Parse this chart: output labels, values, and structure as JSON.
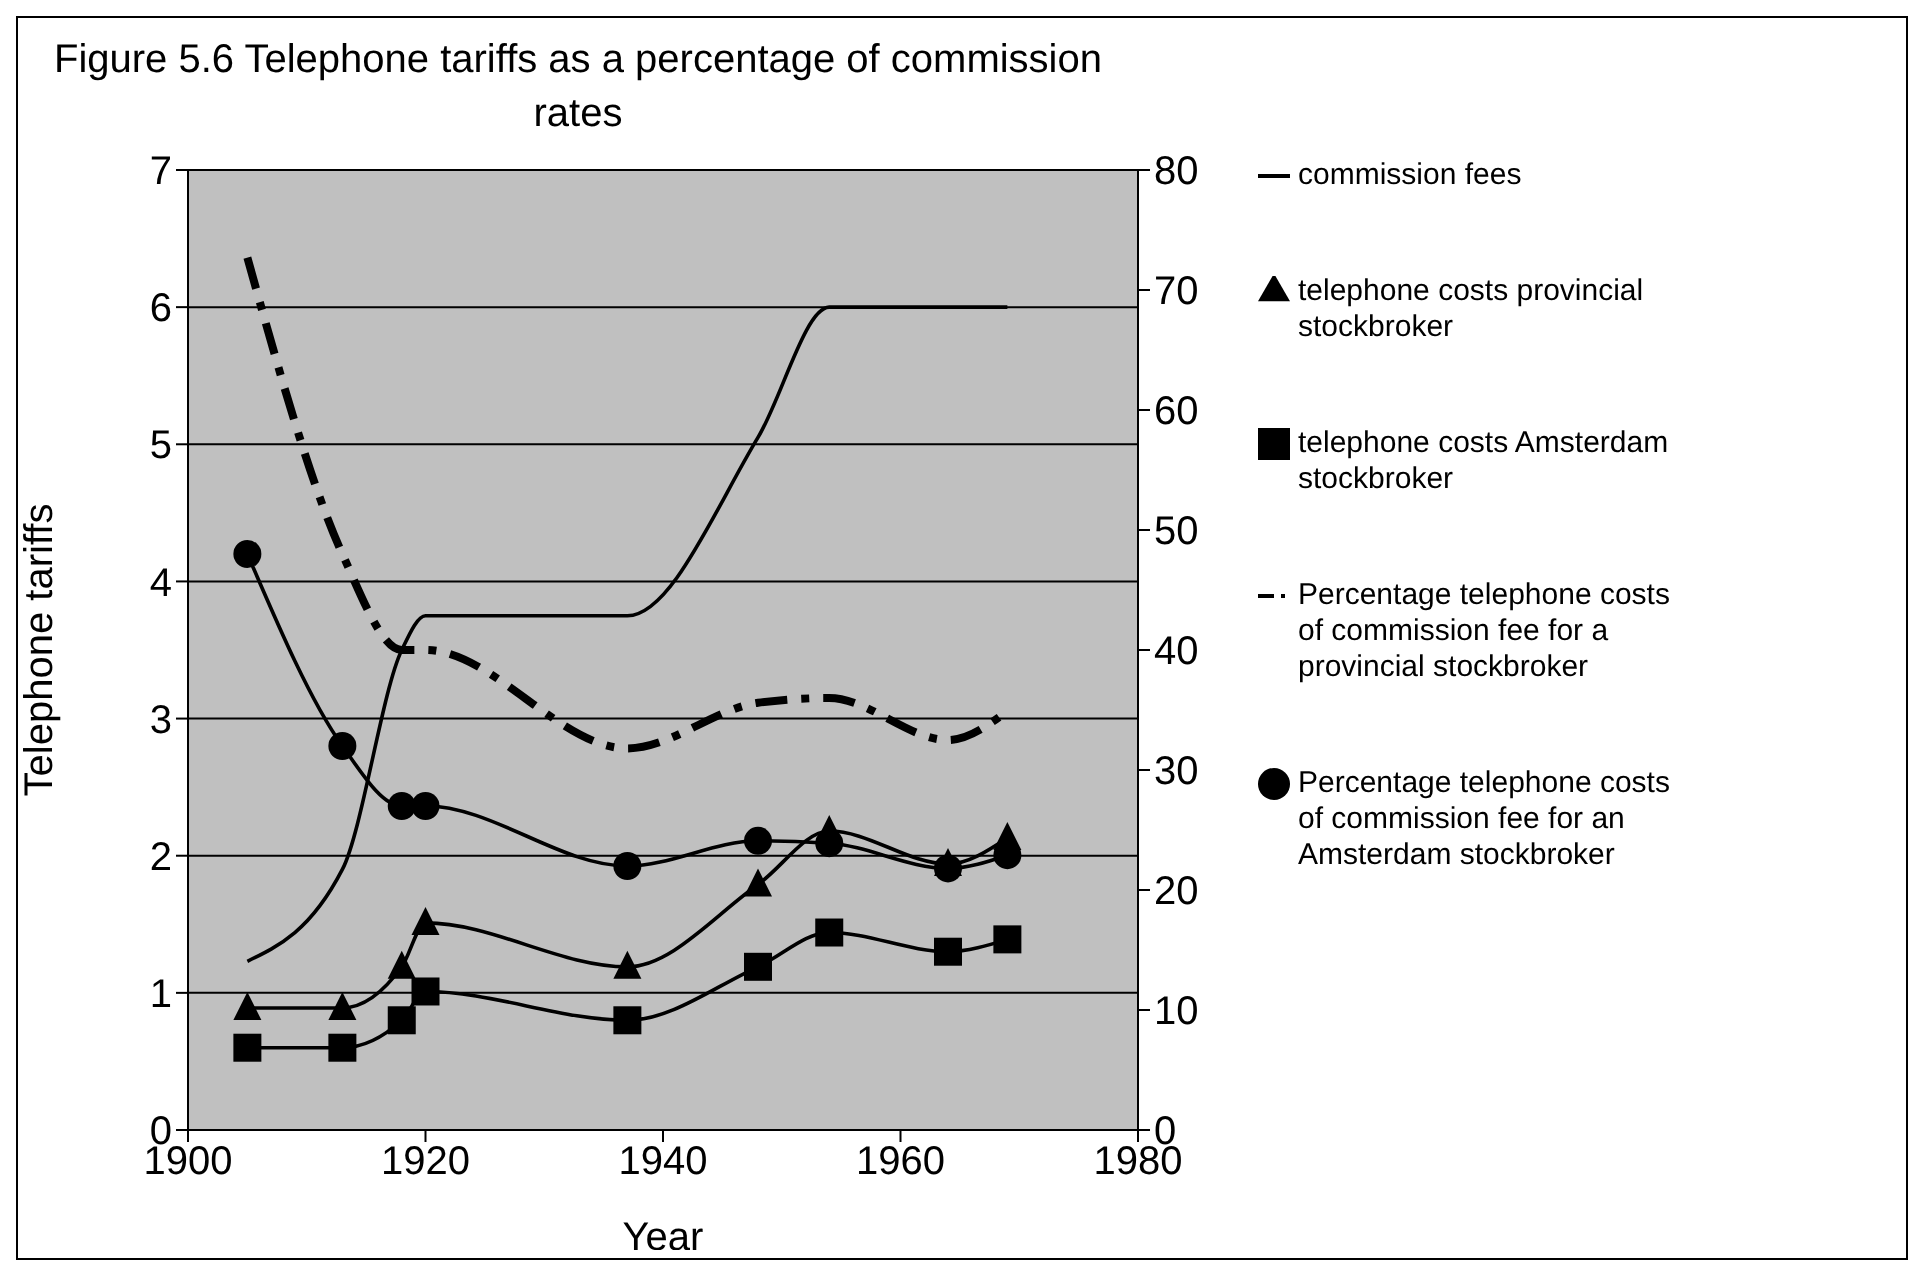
{
  "chart_data": {
    "type": "line",
    "title": "Figure 5.6 Telephone tariffs as a percentage of commission rates",
    "xlabel": "Year",
    "ylabel": "Telephone tariffs",
    "x": [
      1905,
      1913,
      1918,
      1920,
      1937,
      1948,
      1954,
      1964,
      1969
    ],
    "xlim": [
      1900,
      1980
    ],
    "xticks": [
      1900,
      1920,
      1940,
      1960,
      1980
    ],
    "ylim": [
      0,
      7
    ],
    "yticks": [
      0,
      1,
      2,
      3,
      4,
      5,
      6,
      7
    ],
    "y2lim": [
      0,
      80
    ],
    "y2ticks": [
      0,
      10,
      20,
      30,
      40,
      50,
      60,
      70,
      80
    ],
    "grid": "y",
    "legend": "right",
    "series": [
      {
        "name": "commission fees",
        "color": "#000000",
        "marker": "none",
        "line_style": "solid",
        "values": [
          1.23,
          1.9,
          3.5,
          3.75,
          3.75,
          5.05,
          6.0,
          6.0,
          6.0
        ]
      },
      {
        "name": "telephone costs provincial stockbroker",
        "color": "#000000",
        "marker": "triangle",
        "line_style": "solid",
        "values": [
          0.89,
          0.89,
          1.19,
          1.51,
          1.19,
          1.79,
          2.18,
          1.94,
          2.13
        ]
      },
      {
        "name": "telephone costs Amsterdam stockbroker",
        "color": "#000000",
        "marker": "square",
        "line_style": "solid",
        "values": [
          0.6,
          0.6,
          0.8,
          1.01,
          0.8,
          1.19,
          1.44,
          1.3,
          1.39
        ]
      },
      {
        "name": "Percentage telephone costs of commission fee for a provincial stockbroker",
        "color": "#000000",
        "marker": "none",
        "line_style": "dashed",
        "axis": "y2",
        "values": [
          72.7,
          48,
          40,
          40,
          31.8,
          35.6,
          36,
          32.5,
          34.9
        ]
      },
      {
        "name": "Percentage telephone costs of commission fee for an Amsterdam stockbroker",
        "color": "#000000",
        "marker": "circle",
        "line_style": "solid",
        "axis": "y2",
        "values": [
          48,
          32,
          27,
          27,
          22,
          24.1,
          23.9,
          21.8,
          22.9
        ]
      }
    ]
  }
}
